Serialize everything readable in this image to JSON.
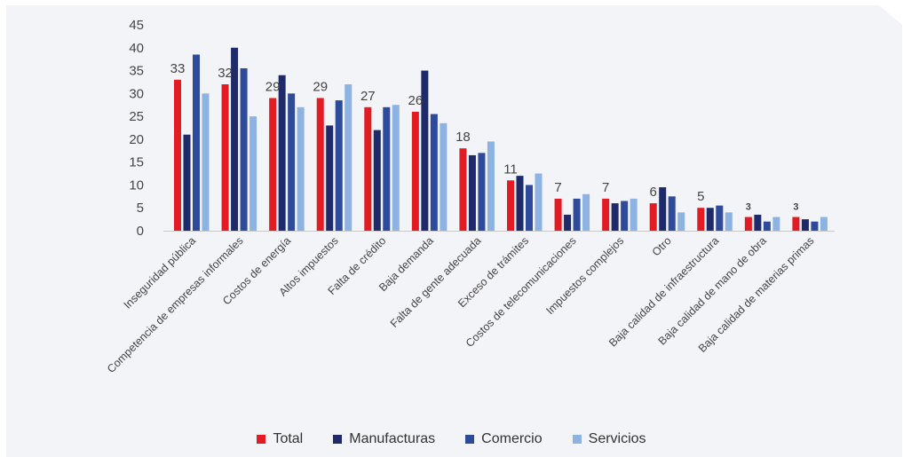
{
  "chart_data": {
    "type": "bar",
    "categories": [
      "Inseguridad pública",
      "Competencia de empresas informales",
      "Costos de energía",
      "Altos impuestos",
      "Falta de crédito",
      "Baja demanda",
      "Falta de gente adecuada",
      "Exceso de trámites",
      "Costos de telecomunicaciones",
      "Impuestos complejos",
      "Otro",
      "Baja calidad de infraestructura",
      "Baja calidad de mano de obra",
      "Baja calidad de materias primas"
    ],
    "series": [
      {
        "name": "Total",
        "color": "#e31b23",
        "values": [
          33,
          32,
          29,
          29,
          27,
          26,
          18,
          11,
          7,
          7,
          6,
          5,
          3,
          3
        ]
      },
      {
        "name": "Manufacturas",
        "color": "#1f2a6b",
        "values": [
          21,
          40,
          34,
          23,
          22,
          35,
          16.5,
          12,
          3.5,
          6,
          9.5,
          5,
          3.5,
          2.5
        ]
      },
      {
        "name": "Comercio",
        "color": "#2e4a9b",
        "values": [
          38.5,
          35.5,
          30,
          28.5,
          27,
          25.5,
          17,
          10,
          7,
          6.5,
          7.5,
          5.5,
          2,
          2
        ]
      },
      {
        "name": "Servicios",
        "color": "#8db3e2",
        "values": [
          30,
          25,
          27,
          32,
          27.5,
          23.5,
          19.5,
          12.5,
          8,
          7,
          4,
          4,
          3,
          3
        ]
      }
    ],
    "data_labels": [
      "33",
      "32",
      "29",
      "29",
      "27",
      "26",
      "18",
      "11",
      "7",
      "7",
      "6",
      "5",
      "3",
      "3"
    ],
    "yticks": [
      "0",
      "5",
      "10",
      "15",
      "20",
      "25",
      "30",
      "35",
      "40",
      "45"
    ],
    "ylim": [
      0,
      45
    ],
    "xlabel": "",
    "ylabel": "",
    "legend_position": "bottom",
    "grid": false
  }
}
